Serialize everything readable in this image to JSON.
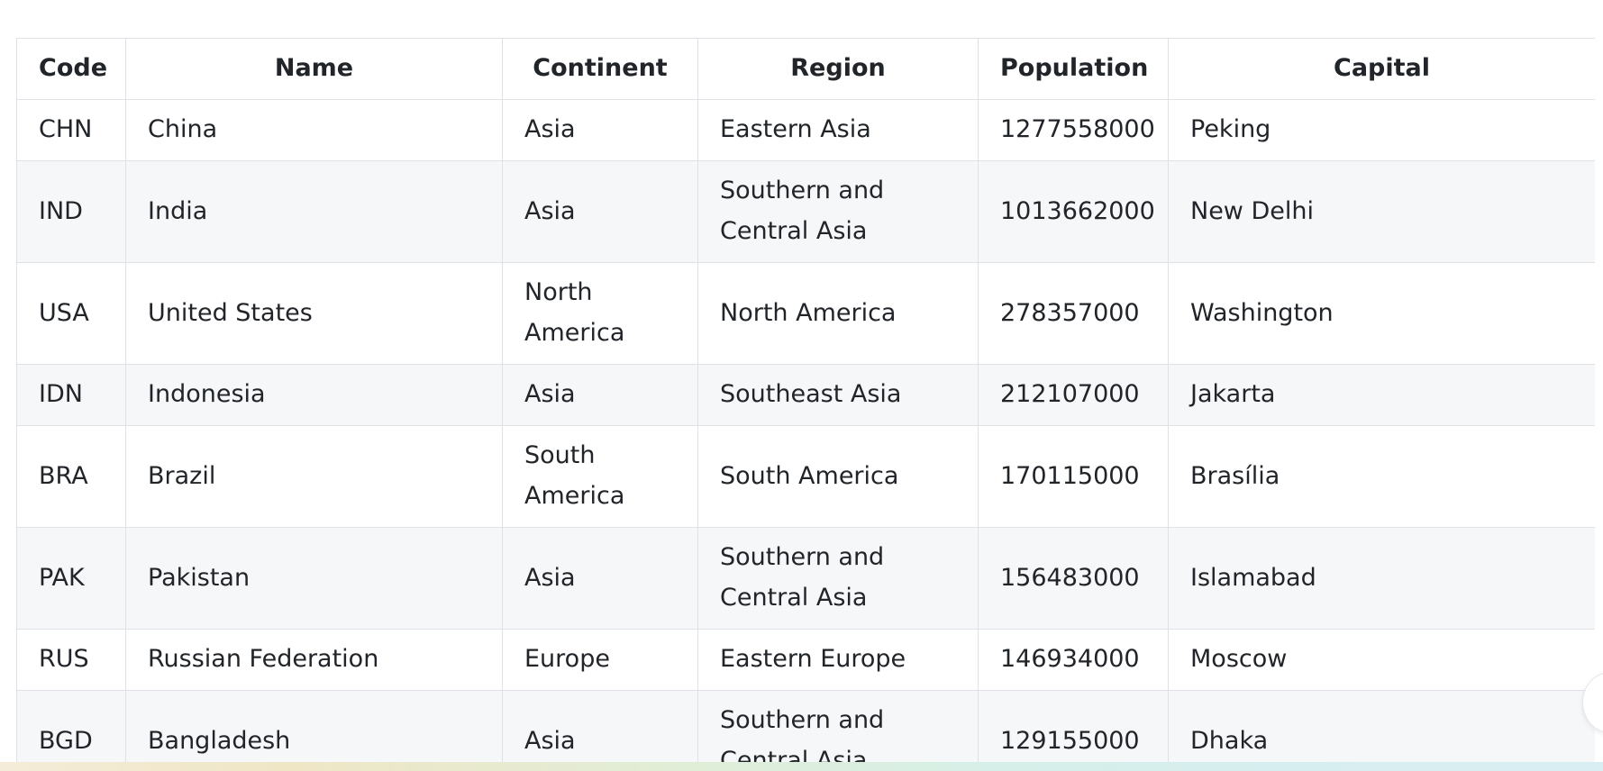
{
  "table": {
    "columns": [
      "Code",
      "Name",
      "Continent",
      "Region",
      "Population",
      "Capital"
    ],
    "rows": [
      [
        "CHN",
        "China",
        "Asia",
        "Eastern Asia",
        "1277558000",
        "Peking"
      ],
      [
        "IND",
        "India",
        "Asia",
        "Southern and Central Asia",
        "1013662000",
        "New Delhi"
      ],
      [
        "USA",
        "United States",
        "North America",
        "North America",
        "278357000",
        "Washington"
      ],
      [
        "IDN",
        "Indonesia",
        "Asia",
        "Southeast Asia",
        "212107000",
        "Jakarta"
      ],
      [
        "BRA",
        "Brazil",
        "South America",
        "South America",
        "170115000",
        "Brasília"
      ],
      [
        "PAK",
        "Pakistan",
        "Asia",
        "Southern and Central Asia",
        "156483000",
        "Islamabad"
      ],
      [
        "RUS",
        "Russian Federation",
        "Europe",
        "Eastern Europe",
        "146934000",
        "Moscow"
      ],
      [
        "BGD",
        "Bangladesh",
        "Asia",
        "Southern and Central Asia",
        "129155000",
        "Dhaka"
      ]
    ]
  },
  "colors": {
    "border": "#dee2e6",
    "stripe": "#f6f7f9",
    "text": "#212529"
  }
}
